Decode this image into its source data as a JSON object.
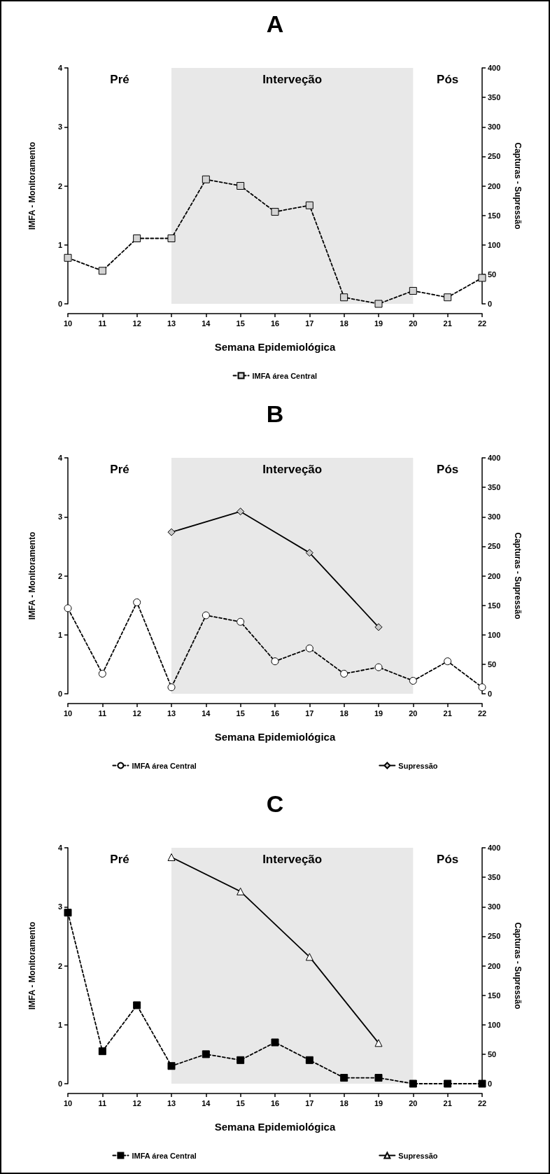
{
  "chart_data": [
    {
      "type": "line",
      "title": "A",
      "xlabel": "Semana Epidemiológica",
      "ylabel": "IMFA - Monitoramento",
      "y2label": "Capturas - Supressão",
      "x": [
        10,
        11,
        12,
        13,
        14,
        15,
        16,
        17,
        18,
        19,
        20,
        21,
        22
      ],
      "series": [
        {
          "name": "IMFA área Central",
          "color": "#d3d3d3",
          "marker": "square",
          "line_style": "dashed",
          "values": [
            0.78,
            0.56,
            1.11,
            1.11,
            2.11,
            2.0,
            1.56,
            1.67,
            0.11,
            0,
            0.22,
            0.11,
            0.44
          ]
        }
      ],
      "xlim": [
        10,
        22
      ],
      "xticks": [
        10,
        11,
        12,
        13,
        14,
        15,
        16,
        17,
        18,
        19,
        20,
        21,
        22
      ],
      "ylim": [
        0,
        4
      ],
      "yticks": [
        0,
        1,
        2,
        3,
        4
      ],
      "y2lim": [
        0,
        400
      ],
      "y2ticks": [
        0,
        50,
        100,
        150,
        200,
        250,
        300,
        350,
        400
      ],
      "bands": [
        {
          "axis": "x",
          "from": 13,
          "to": 20,
          "label": "Interveção",
          "color": "#e8e8e8"
        }
      ],
      "annotations": [
        "Pré",
        "Pós"
      ],
      "grid": false,
      "legend": "bottom"
    },
    {
      "type": "line",
      "title": "B",
      "xlabel": "Semana Epidemiológica",
      "ylabel": "IMFA - Monitoramento",
      "y2label": "Capturas - Supressão",
      "x": [
        10,
        11,
        12,
        13,
        14,
        15,
        16,
        17,
        18,
        19,
        20,
        21,
        22
      ],
      "series": [
        {
          "name": "IMFA área Central",
          "color": "#ffffff",
          "marker": "circle",
          "line_style": "dashed",
          "values": [
            1.45,
            0.34,
            1.55,
            0.11,
            1.33,
            1.22,
            0.55,
            0.77,
            0.34,
            0.45,
            0.22,
            0.55,
            0.11
          ]
        },
        {
          "name": "Supressão",
          "color": "#c8c8c8",
          "marker": "diamond",
          "line_style": "solid",
          "axis": "y2",
          "x": [
            13,
            15,
            17,
            19
          ],
          "values": [
            274,
            309,
            239,
            113
          ]
        }
      ],
      "xlim": [
        10,
        22
      ],
      "xticks": [
        10,
        11,
        12,
        13,
        14,
        15,
        16,
        17,
        18,
        19,
        20,
        21,
        22
      ],
      "ylim": [
        0,
        4
      ],
      "yticks": [
        0,
        1,
        2,
        3,
        4
      ],
      "y2lim": [
        0,
        400
      ],
      "y2ticks": [
        0,
        50,
        100,
        150,
        200,
        250,
        300,
        350,
        400
      ],
      "bands": [
        {
          "axis": "x",
          "from": 13,
          "to": 20,
          "label": "Interveção",
          "color": "#e8e8e8"
        }
      ],
      "annotations": [
        "Pré",
        "Pós"
      ],
      "grid": false,
      "legend": "bottom"
    },
    {
      "type": "line",
      "title": "C",
      "xlabel": "Semana Epidemiológica",
      "ylabel": "IMFA - Monitoramento",
      "y2label": "Capturas - Supressão",
      "x": [
        10,
        11,
        12,
        13,
        14,
        15,
        16,
        17,
        18,
        19,
        20,
        21,
        22
      ],
      "series": [
        {
          "name": "IMFA área Central",
          "color": "#000000",
          "marker": "square",
          "line_style": "dashed",
          "values": [
            2.9,
            0.55,
            1.33,
            0.3,
            0.5,
            0.4,
            0.7,
            0.4,
            0.1,
            0.1,
            0,
            0,
            0
          ]
        },
        {
          "name": "Supressão",
          "color": "#ffffff",
          "marker": "triangle",
          "line_style": "solid",
          "axis": "y2",
          "x": [
            13,
            15,
            17,
            19
          ],
          "values": [
            384,
            326,
            215,
            69
          ]
        }
      ],
      "xlim": [
        10,
        22
      ],
      "xticks": [
        10,
        11,
        12,
        13,
        14,
        15,
        16,
        17,
        18,
        19,
        20,
        21,
        22
      ],
      "ylim": [
        0,
        4
      ],
      "yticks": [
        0,
        1,
        2,
        3,
        4
      ],
      "y2lim": [
        0,
        400
      ],
      "y2ticks": [
        0,
        50,
        100,
        150,
        200,
        250,
        300,
        350,
        400
      ],
      "bands": [
        {
          "axis": "x",
          "from": 13,
          "to": 20,
          "label": "Interveção",
          "color": "#e8e8e8"
        }
      ],
      "annotations": [
        "Pré",
        "Pós"
      ],
      "grid": false,
      "legend": "bottom"
    }
  ]
}
